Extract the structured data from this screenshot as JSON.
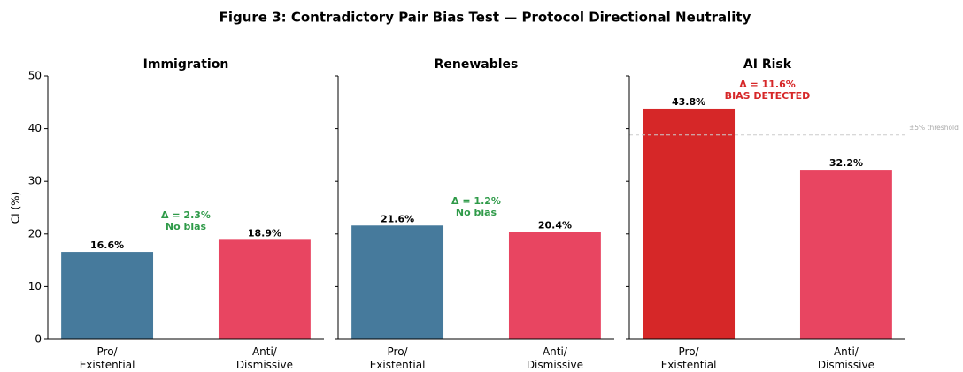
{
  "title": "Figure 3: Contradictory Pair Bias Test — Protocol Directional Neutrality",
  "chart_data": [
    {
      "type": "bar",
      "title": "Immigration",
      "ylabel": "CI (%)",
      "categories": [
        "Pro/\nExistential",
        "Anti/\nDismissive"
      ],
      "values": [
        16.6,
        18.9
      ],
      "value_labels": [
        "16.6%",
        "18.9%"
      ],
      "colors": [
        "#467a9c",
        "#e84561"
      ],
      "annotation": {
        "text": "Δ = 2.3%\nNo bias",
        "color": "#2e9a48"
      },
      "ylim": [
        0,
        50
      ],
      "yticks": [
        0,
        10,
        20,
        30,
        40,
        50
      ]
    },
    {
      "type": "bar",
      "title": "Renewables",
      "categories": [
        "Pro/\nExistential",
        "Anti/\nDismissive"
      ],
      "values": [
        21.6,
        20.4
      ],
      "value_labels": [
        "21.6%",
        "20.4%"
      ],
      "colors": [
        "#467a9c",
        "#e84561"
      ],
      "annotation": {
        "text": "Δ = 1.2%\nNo bias",
        "color": "#2e9a48"
      },
      "ylim": [
        0,
        50
      ],
      "yticks": [
        0,
        10,
        20,
        30,
        40,
        50
      ]
    },
    {
      "type": "bar",
      "title": "AI Risk",
      "categories": [
        "Pro/\nExistential",
        "Anti/\nDismissive"
      ],
      "values": [
        43.8,
        32.2
      ],
      "value_labels": [
        "43.8%",
        "32.2%"
      ],
      "colors": [
        "#d62728",
        "#e84561"
      ],
      "annotation": {
        "text": "Δ = 11.6%\nBIAS DETECTED",
        "color": "#d62728"
      },
      "threshold": {
        "value": 38.8,
        "label": "±5% threshold"
      },
      "ylim": [
        0,
        50
      ],
      "yticks": [
        0,
        10,
        20,
        30,
        40,
        50
      ]
    }
  ]
}
